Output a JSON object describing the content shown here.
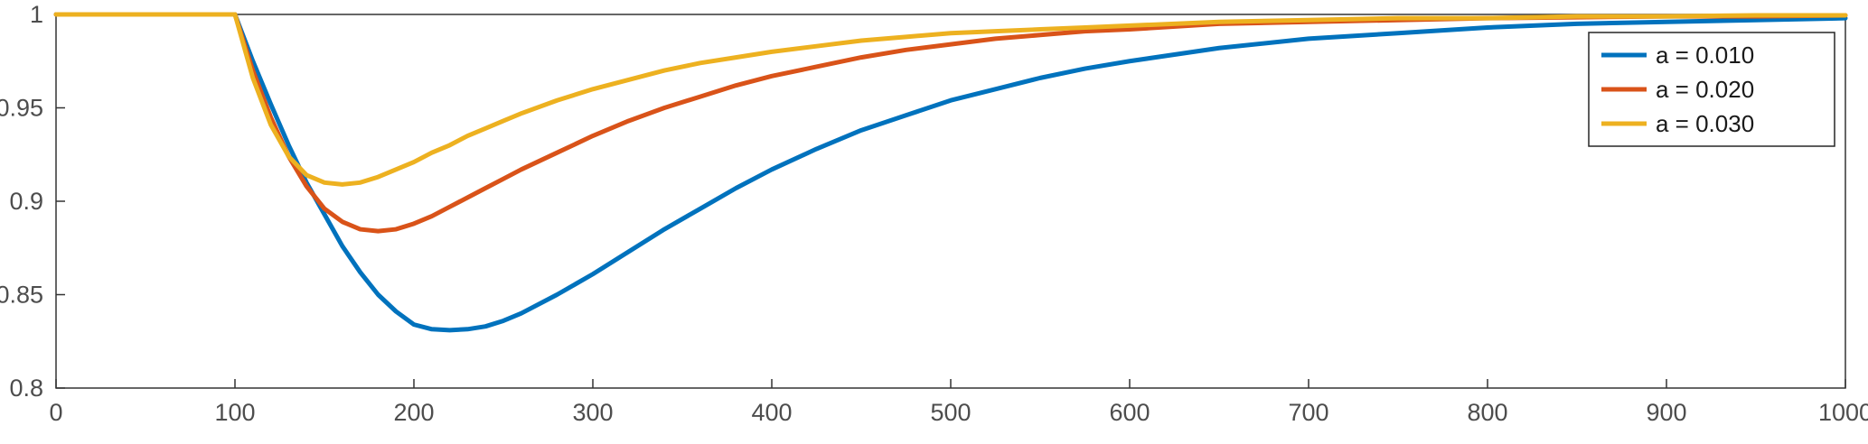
{
  "chart_data": {
    "type": "line",
    "title": "",
    "xlabel": "",
    "ylabel": "",
    "xlim": [
      0,
      1000
    ],
    "ylim": [
      0.8,
      1
    ],
    "xticks": [
      0,
      100,
      200,
      300,
      400,
      500,
      600,
      700,
      800,
      900,
      1000
    ],
    "xtick_labels": [
      "0",
      "100",
      "200",
      "300",
      "400",
      "500",
      "600",
      "700",
      "800",
      "900",
      "1000"
    ],
    "yticks": [
      0.8,
      0.85,
      0.9,
      0.95,
      1
    ],
    "ytick_labels": [
      "0.8",
      "0.85",
      "0.9",
      "0.95",
      "1"
    ],
    "grid": false,
    "box": true,
    "legend_position": "top-right",
    "axis_color": "#333333",
    "label_color": "#4d4d4d",
    "background_color": "#ffffff",
    "x": [
      0,
      50,
      100,
      110,
      120,
      130,
      140,
      150,
      160,
      170,
      180,
      190,
      200,
      210,
      220,
      230,
      240,
      250,
      260,
      280,
      300,
      320,
      340,
      360,
      380,
      400,
      425,
      450,
      475,
      500,
      525,
      550,
      575,
      600,
      650,
      700,
      750,
      800,
      850,
      900,
      950,
      1000
    ],
    "series": [
      {
        "name": "a = 0.010",
        "color": "#0072BD",
        "values": [
          1,
          1,
          1,
          0.975,
          0.952,
          0.93,
          0.91,
          0.893,
          0.876,
          0.862,
          0.85,
          0.841,
          0.834,
          0.8315,
          0.831,
          0.8315,
          0.833,
          0.836,
          0.84,
          0.85,
          0.861,
          0.873,
          0.885,
          0.896,
          0.907,
          0.917,
          0.928,
          0.938,
          0.946,
          0.954,
          0.96,
          0.966,
          0.971,
          0.975,
          0.982,
          0.987,
          0.99,
          0.993,
          0.995,
          0.996,
          0.997,
          0.998
        ]
      },
      {
        "name": "a = 0.020",
        "color": "#D95319",
        "values": [
          1,
          1,
          1,
          0.97,
          0.945,
          0.924,
          0.908,
          0.896,
          0.889,
          0.885,
          0.884,
          0.885,
          0.888,
          0.892,
          0.897,
          0.902,
          0.907,
          0.912,
          0.917,
          0.926,
          0.935,
          0.943,
          0.95,
          0.956,
          0.962,
          0.967,
          0.972,
          0.977,
          0.981,
          0.984,
          0.987,
          0.989,
          0.991,
          0.992,
          0.995,
          0.996,
          0.997,
          0.998,
          0.9985,
          0.999,
          0.999,
          0.9995
        ]
      },
      {
        "name": "a = 0.030",
        "color": "#EDB120",
        "values": [
          1,
          1,
          1,
          0.966,
          0.941,
          0.924,
          0.914,
          0.91,
          0.909,
          0.91,
          0.913,
          0.917,
          0.921,
          0.926,
          0.93,
          0.935,
          0.939,
          0.943,
          0.947,
          0.954,
          0.96,
          0.965,
          0.97,
          0.974,
          0.977,
          0.98,
          0.983,
          0.986,
          0.988,
          0.99,
          0.991,
          0.992,
          0.993,
          0.994,
          0.996,
          0.997,
          0.998,
          0.998,
          0.999,
          0.999,
          0.9995,
          0.9995
        ]
      }
    ],
    "legend": {
      "entries": [
        "a = 0.010",
        "a = 0.020",
        "a = 0.030"
      ],
      "border_color": "#262626",
      "background": "#ffffff"
    }
  }
}
